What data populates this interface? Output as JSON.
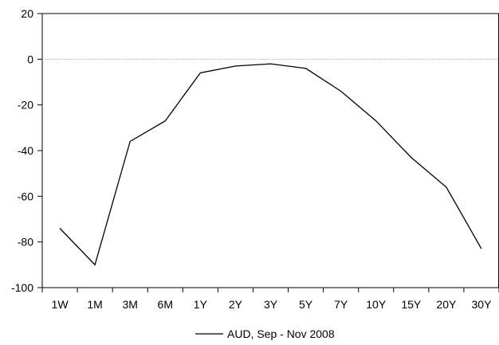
{
  "chart_data": {
    "type": "line",
    "categories": [
      "1W",
      "1M",
      "3M",
      "6M",
      "1Y",
      "2Y",
      "3Y",
      "5Y",
      "7Y",
      "10Y",
      "15Y",
      "20Y",
      "30Y"
    ],
    "series": [
      {
        "name": "AUD, Sep - Nov 2008",
        "values": [
          -74,
          -90,
          -36,
          -27,
          -6,
          -3,
          -2,
          -4,
          -14,
          -27,
          -43,
          -56,
          -83
        ],
        "color": "#000000"
      }
    ],
    "ylim": [
      -100,
      20
    ],
    "yticks": [
      20,
      0,
      -20,
      -40,
      -60,
      -80,
      -100
    ],
    "zero_line": true,
    "zero_line_color": "#a0a0a0",
    "legend": "bottom-center"
  }
}
